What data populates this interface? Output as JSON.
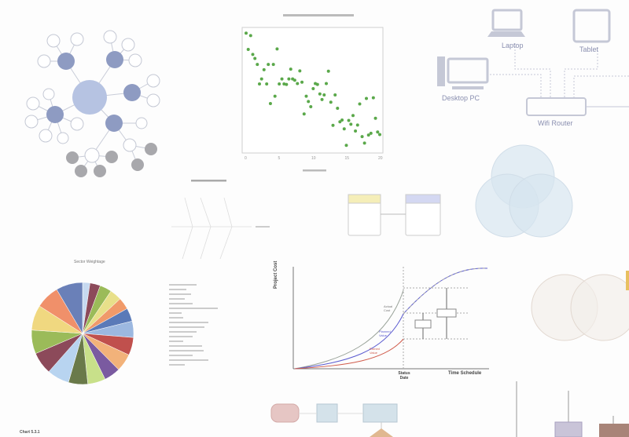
{
  "network": {
    "laptop": "Laptop",
    "tablet": "Tablet",
    "desktop": "Desktop PC",
    "router": "Wifi Router",
    "colors": {
      "device": "#c5c8d6",
      "label": "#8a8fb0"
    }
  },
  "earned_value": {
    "y_label": "Project Cost",
    "x_label": "Time Schedule",
    "status_date": "Status Date",
    "actual_cost": "Actual Cost",
    "planned_value": "Planned Value",
    "earned_value": "Earned Value",
    "colors": {
      "actual": "#9aa39a",
      "planned": "#5b5bd0",
      "earned": "#d05b4b"
    }
  },
  "pie_title": "Sector Weightage",
  "footer_label": "Chart 5.3.1",
  "chart_data": [
    {
      "type": "scatter",
      "xlim": [
        0,
        20
      ],
      "xticks": [
        "0",
        "5",
        "10",
        "15",
        "20"
      ],
      "color": "#5aa84a",
      "points": [
        [
          0,
          9.85
        ],
        [
          0.68,
          9.64
        ],
        [
          0.32,
          8.47
        ],
        [
          1.0,
          8.04
        ],
        [
          1.32,
          7.7
        ],
        [
          1.68,
          7.19
        ],
        [
          2.68,
          6.74
        ],
        [
          2.32,
          5.96
        ],
        [
          2.0,
          5.53
        ],
        [
          3.08,
          5.53
        ],
        [
          3.32,
          7.19
        ],
        [
          4.08,
          7.19
        ],
        [
          3.64,
          3.87
        ],
        [
          4.32,
          4.49
        ],
        [
          4.64,
          8.51
        ],
        [
          4.96,
          5.53
        ],
        [
          5.36,
          5.96
        ],
        [
          5.68,
          5.53
        ],
        [
          6.04,
          5.49
        ],
        [
          6.4,
          5.96
        ],
        [
          6.68,
          6.79
        ],
        [
          6.96,
          5.96
        ],
        [
          7.28,
          5.85
        ],
        [
          7.68,
          5.57
        ],
        [
          8.04,
          6.64
        ],
        [
          8.36,
          5.68
        ],
        [
          8.68,
          2.98
        ],
        [
          9.0,
          4.49
        ],
        [
          9.32,
          4.04
        ],
        [
          9.68,
          3.6
        ],
        [
          10.04,
          5.13
        ],
        [
          10.36,
          5.57
        ],
        [
          10.68,
          5.49
        ],
        [
          11.04,
          4.68
        ],
        [
          11.36,
          4.21
        ],
        [
          11.68,
          4.6
        ],
        [
          12.0,
          5.57
        ],
        [
          12.32,
          6.62
        ],
        [
          12.68,
          3.98
        ],
        [
          13.0,
          2.02
        ],
        [
          13.32,
          4.6
        ],
        [
          13.68,
          3.47
        ],
        [
          14.04,
          2.32
        ],
        [
          14.36,
          2.47
        ],
        [
          14.68,
          1.72
        ],
        [
          15.0,
          0.32
        ],
        [
          15.36,
          2.43
        ],
        [
          15.68,
          2.11
        ],
        [
          16.0,
          2.85
        ],
        [
          16.36,
          1.53
        ],
        [
          16.68,
          2.04
        ],
        [
          17.0,
          3.83
        ],
        [
          17.36,
          1.06
        ],
        [
          17.72,
          0.51
        ],
        [
          18.0,
          4.3
        ],
        [
          18.32,
          1.19
        ],
        [
          18.68,
          1.34
        ],
        [
          19.04,
          4.36
        ],
        [
          19.36,
          2.62
        ],
        [
          19.68,
          1.45
        ],
        [
          20.0,
          1.23
        ]
      ]
    },
    {
      "type": "pie",
      "title": "Sector Weightage",
      "values": [
        2.5,
        3.5,
        4,
        4,
        4,
        4.5,
        5.5,
        6,
        6,
        5.5,
        6,
        6.5,
        7.5,
        7.5,
        8,
        8.5,
        8,
        9
      ],
      "colors": [
        "#c6d9f0",
        "#8c4a5a",
        "#9bbb59",
        "#e8e08a",
        "#f09a6a",
        "#5a7ab8",
        "#9cb8e0",
        "#c0504d",
        "#f2b27a",
        "#7a5aa0",
        "#c8e08a",
        "#6a7a4a",
        "#b8d4f0",
        "#8c4a5a",
        "#9bbb59",
        "#f0d880",
        "#f0906a",
        "#6a80b8"
      ],
      "legend_placement": "right"
    }
  ]
}
